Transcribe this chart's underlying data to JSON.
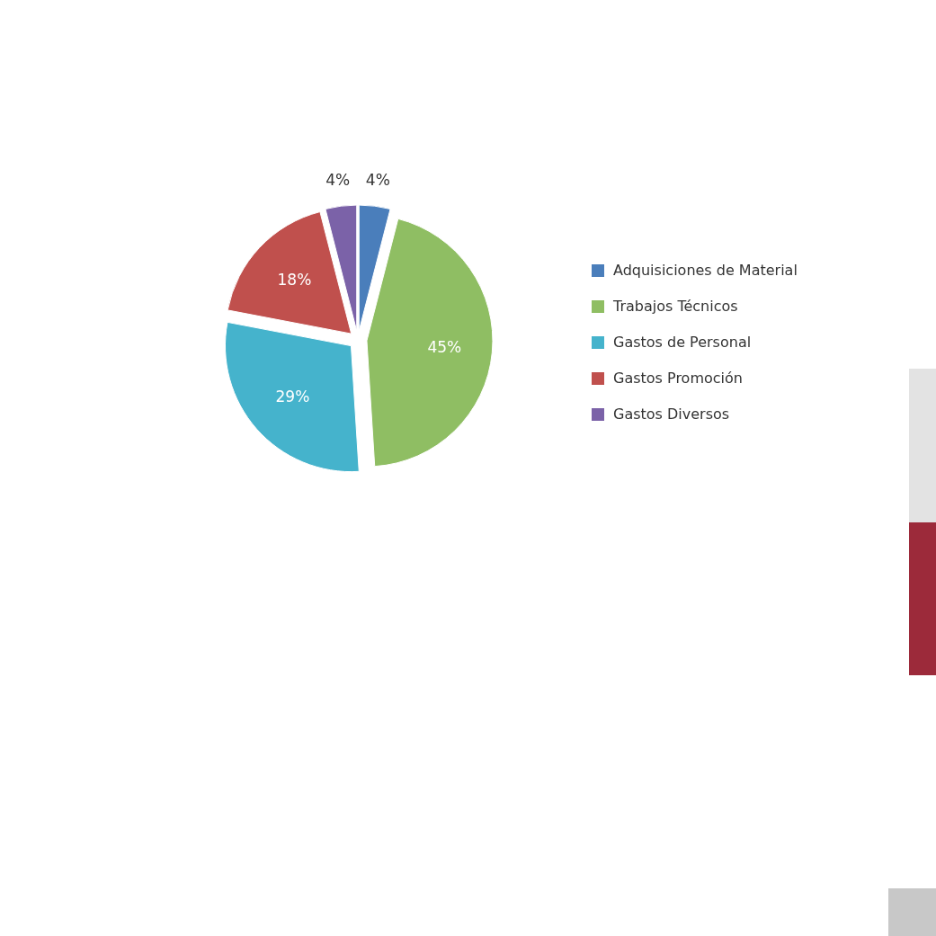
{
  "chart_data": {
    "type": "pie",
    "categories": [
      "Adquisiciones de Material",
      "Trabajos Técnicos",
      "Gastos de Personal",
      "Gastos Promoción",
      "Gastos Diversos"
    ],
    "values": [
      4,
      45,
      29,
      18,
      4
    ],
    "colors": [
      "#4a7ebb",
      "#8fbe63",
      "#45b3cc",
      "#c0504d",
      "#7b62a8"
    ],
    "value_labels": [
      "4%",
      "45%",
      "29%",
      "18%",
      "4%"
    ],
    "legend": "right"
  }
}
